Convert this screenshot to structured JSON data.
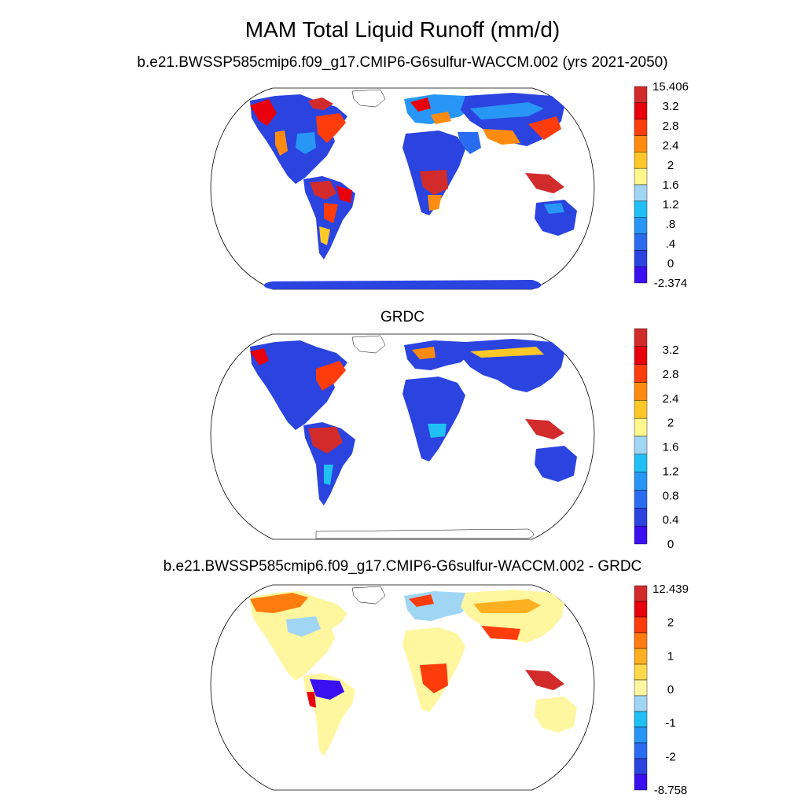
{
  "title": "MAM Total Liquid Runoff (mm/d)",
  "panels": [
    {
      "title": "b.e21.BWSSP585cmip6.f09_g17.CMIP6-G6sulfur-WACCM.002 (yrs 2021-2050)",
      "colorbar": {
        "colors": [
          "#3a10f0",
          "#2b44e0",
          "#2a6cf0",
          "#2896f4",
          "#20bff4",
          "#a0d6f4",
          "#fff68c",
          "#ffc828",
          "#ff8c10",
          "#ff3c0c",
          "#e8000c",
          "#d22b2b"
        ],
        "labels": [
          "15.406",
          "3.2",
          "2.8",
          "2.4",
          "2",
          "1.6",
          "1.2",
          ".8",
          ".4",
          "0",
          "-2.374"
        ]
      }
    },
    {
      "title": "GRDC",
      "colorbar": {
        "colors": [
          "#3a10f0",
          "#2b44e0",
          "#2a6cf0",
          "#2896f4",
          "#20bff4",
          "#a0d6f4",
          "#fff68c",
          "#ffc828",
          "#ff8c10",
          "#ff3c0c",
          "#e8000c",
          "#d22b2b"
        ],
        "labels": [
          "3.2",
          "2.8",
          "2.4",
          "2",
          "1.6",
          "1.2",
          "0.8",
          "0.4",
          "0"
        ]
      }
    },
    {
      "title": "b.e21.BWSSP585cmip6.f09_g17.CMIP6-G6sulfur-WACCM.002 - GRDC",
      "colorbar": {
        "colors": [
          "#3a10f0",
          "#2b44e0",
          "#2a6cf0",
          "#2896f4",
          "#20bff4",
          "#a0d6f4",
          "#fff6a0",
          "#ffd84a",
          "#ffb020",
          "#ff7c10",
          "#ff3c0c",
          "#e8000c",
          "#d22b2b"
        ],
        "labels": [
          "12.439",
          "2",
          "1",
          "0",
          "-1",
          "-2",
          "-8.758"
        ]
      }
    }
  ]
}
